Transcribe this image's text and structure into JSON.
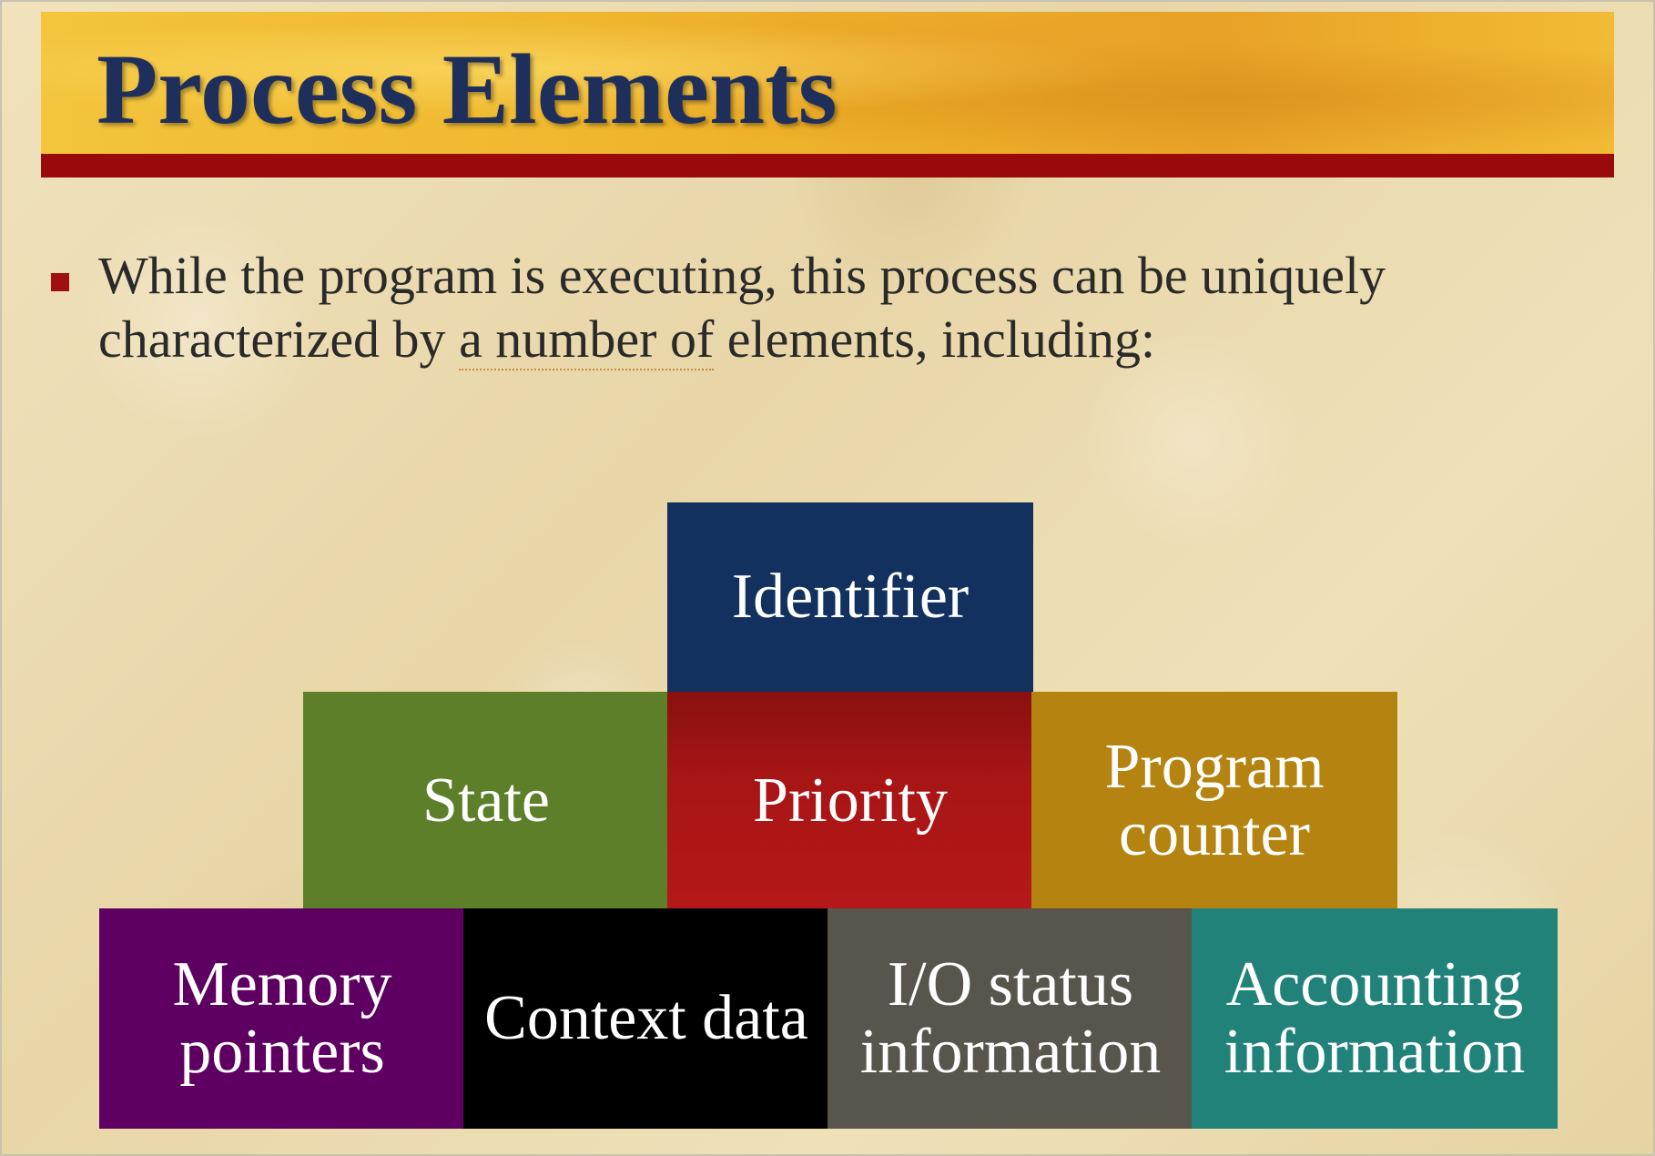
{
  "slide": {
    "title": "Process Elements",
    "bullet": {
      "text_before": "While the program is executing, this process can be uniquely characterized by ",
      "text_underlined": "a number of",
      "text_after": " elements, including:"
    }
  },
  "diagram": {
    "top_row": [
      {
        "label": "Identifier",
        "color": "#12315e"
      }
    ],
    "middle_row": [
      {
        "label": "State",
        "color": "#5d7f2a"
      },
      {
        "label": "Priority",
        "color": "#a81515"
      },
      {
        "label": "Program counter",
        "color": "#b5830f"
      }
    ],
    "bottom_row": [
      {
        "label": "Memory pointers",
        "color": "#5e0062"
      },
      {
        "label": "Context data",
        "color": "#000000"
      },
      {
        "label": "I/O status information",
        "color": "#57554c"
      },
      {
        "label": "Accounting information",
        "color": "#21827a"
      }
    ]
  },
  "colors": {
    "title_text": "#1f2f5c",
    "title_banner": "#f0b830",
    "title_underline": "#9a0a0a",
    "bullet_marker": "#a01010"
  }
}
